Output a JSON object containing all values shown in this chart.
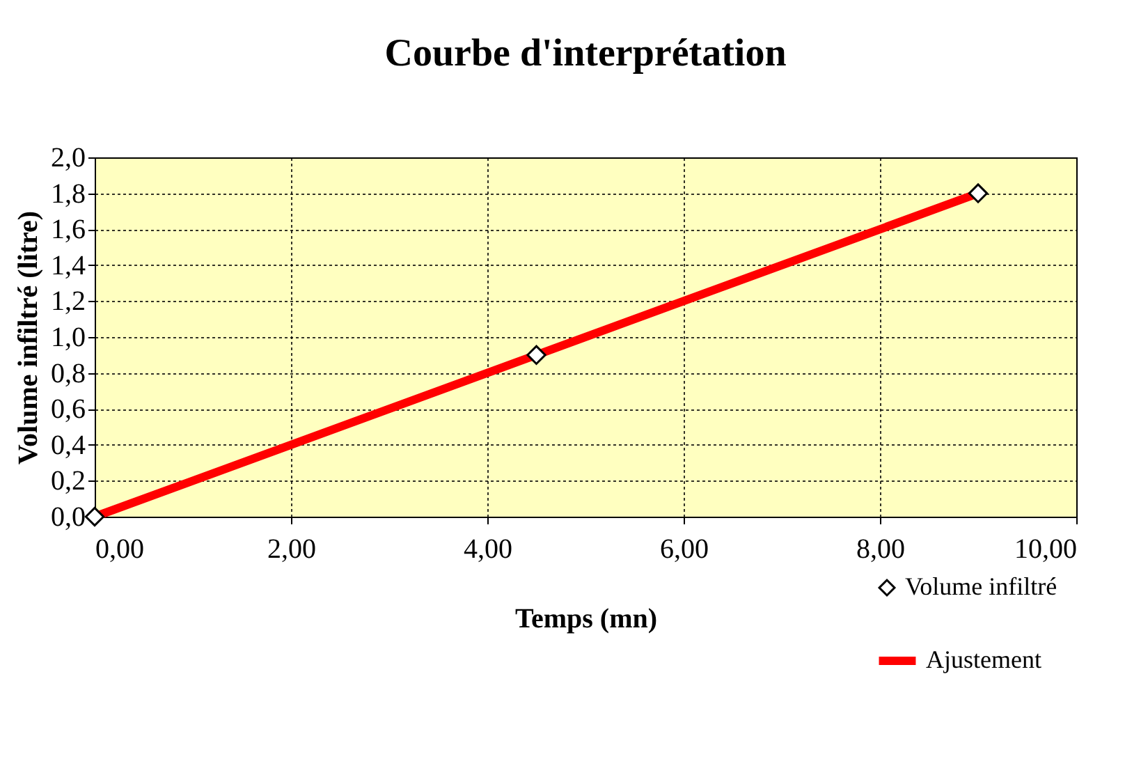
{
  "chart_data": {
    "type": "line",
    "title": "Courbe d'interprétation",
    "xlabel": "Temps  (mn)",
    "ylabel": "Volume infiltré (litre)",
    "xlim": [
      0,
      10
    ],
    "ylim": [
      0,
      2
    ],
    "xticks": [
      {
        "value": 0,
        "label": "0,00"
      },
      {
        "value": 2,
        "label": "2,00"
      },
      {
        "value": 4,
        "label": "4,00"
      },
      {
        "value": 6,
        "label": "6,00"
      },
      {
        "value": 8,
        "label": "8,00"
      },
      {
        "value": 10,
        "label": "10,00"
      }
    ],
    "yticks": [
      {
        "value": 0,
        "label": "0,0"
      },
      {
        "value": 0.2,
        "label": "0,2"
      },
      {
        "value": 0.4,
        "label": "0,4"
      },
      {
        "value": 0.6,
        "label": "0,6"
      },
      {
        "value": 0.8,
        "label": "0,8"
      },
      {
        "value": 1,
        "label": "1,0"
      },
      {
        "value": 1.2,
        "label": "1,2"
      },
      {
        "value": 1.4,
        "label": "1,4"
      },
      {
        "value": 1.6,
        "label": "1,6"
      },
      {
        "value": 1.8,
        "label": "1,8"
      },
      {
        "value": 2,
        "label": "2,0"
      }
    ],
    "grid": true,
    "legend": "bottom right",
    "series": [
      {
        "name": "Volume infiltré",
        "type": "scatter",
        "marker": "diamond",
        "color": "#000000",
        "x": [
          0,
          4.5,
          9
        ],
        "values": [
          0,
          0.9,
          1.8
        ]
      },
      {
        "name": "Ajustement",
        "color": "#ff0000",
        "x": [
          0,
          9
        ],
        "values": [
          0,
          1.8
        ]
      }
    ]
  }
}
